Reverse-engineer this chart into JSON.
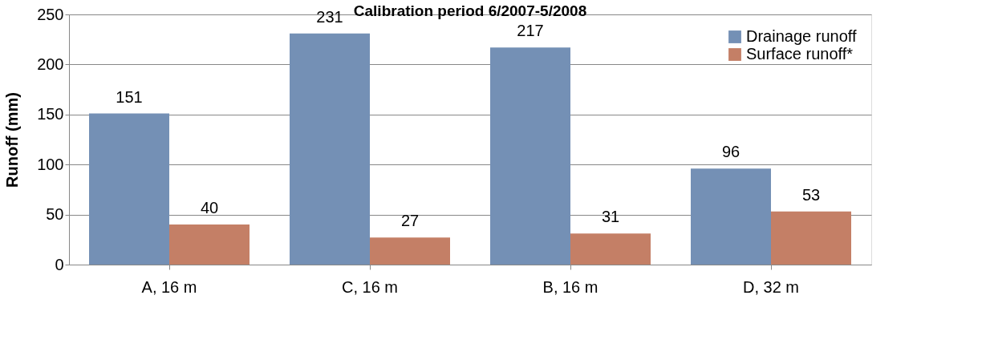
{
  "chart_data": {
    "type": "bar",
    "title": "Calibration period 6/2007-5/2008",
    "ylabel": "Runoff (mm)",
    "categories": [
      "A, 16 m",
      "C, 16 m",
      "B, 16 m",
      "D, 32 m"
    ],
    "series": [
      {
        "name": "Drainage runoff",
        "color": "#7490b5",
        "values": [
          151,
          231,
          217,
          96
        ]
      },
      {
        "name": "Surface runoff*",
        "color": "#c47f66",
        "values": [
          40,
          27,
          31,
          53
        ]
      }
    ],
    "ylim": [
      0,
      250
    ],
    "yticks": [
      0,
      50,
      100,
      150,
      200,
      250
    ],
    "grid": "y",
    "legend": "top right",
    "data_labels": true
  }
}
